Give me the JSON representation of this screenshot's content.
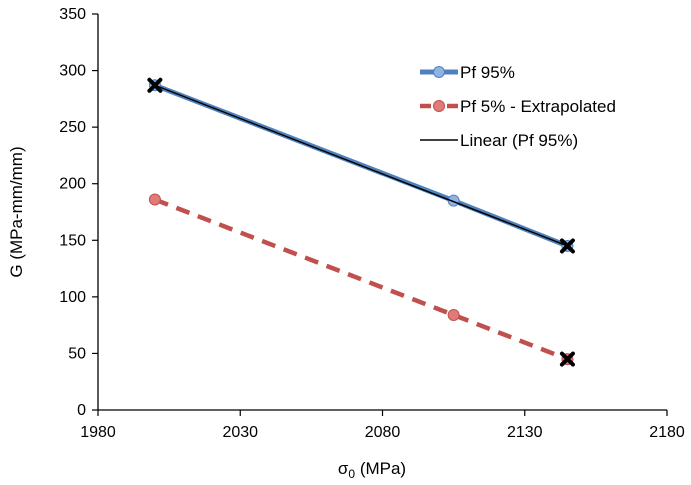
{
  "chart_data": {
    "type": "line",
    "xlabel": "σ0 (MPa)",
    "xlabel_parts": {
      "main": "σ",
      "sub": "0",
      "rest": " (MPa)"
    },
    "ylabel": "G (MPa-mm/mm)",
    "xlim": [
      1980,
      2180
    ],
    "ylim": [
      0,
      350
    ],
    "xticks": [
      1980,
      2030,
      2080,
      2130,
      2180
    ],
    "yticks": [
      0,
      50,
      100,
      150,
      200,
      250,
      300,
      350
    ],
    "grid": false,
    "legend_placement": "top-right",
    "series": [
      {
        "name": "Pf 95%",
        "style": "solid-line-circle-markers",
        "color": "#4f81bd",
        "x": [
          2000,
          2105,
          2145
        ],
        "y": [
          287,
          185,
          145
        ]
      },
      {
        "name": "Pf 5% - Extrapolated",
        "style": "dashed-line-circle-markers",
        "color": "#c0504d",
        "x": [
          2000,
          2105,
          2145
        ],
        "y": [
          186,
          84,
          45
        ]
      },
      {
        "name": "Linear (Pf 95%)",
        "style": "thin-trendline",
        "color": "#000000",
        "x": [
          2000,
          2145
        ],
        "y": [
          287,
          145
        ]
      }
    ],
    "x_markers": {
      "color": "#000000",
      "points": [
        {
          "x": 2000,
          "y": 287
        },
        {
          "x": 2145,
          "y": 145
        },
        {
          "x": 2145,
          "y": 45
        }
      ]
    }
  }
}
